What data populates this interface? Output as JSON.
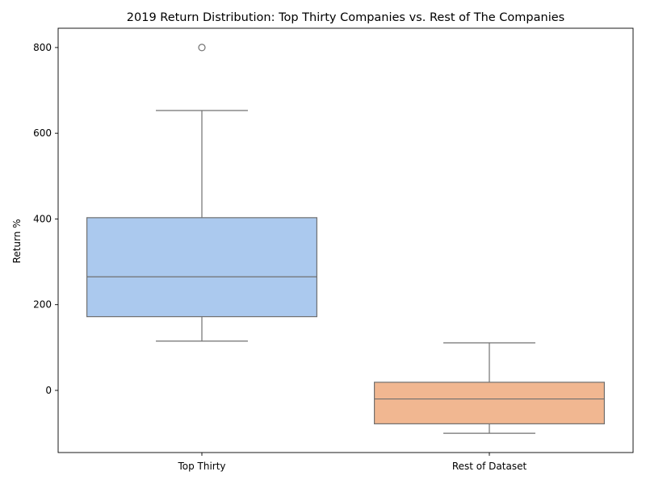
{
  "chart_data": {
    "type": "box",
    "title": "2019 Return Distribution: Top Thirty Companies vs. Rest of The Companies",
    "xlabel": "",
    "ylabel": "Return %",
    "ylim": [
      -145,
      845
    ],
    "yticks": [
      0,
      200,
      400,
      600,
      800
    ],
    "grid": false,
    "categories": [
      "Top Thirty",
      "Rest of Dataset"
    ],
    "boxes": [
      {
        "category": "Top Thirty",
        "whisker_low": 115,
        "q1": 172,
        "median": 265,
        "q3": 403,
        "whisker_high": 653,
        "outliers": [
          800
        ],
        "color": "#abc9ee"
      },
      {
        "category": "Rest of Dataset",
        "whisker_low": -100,
        "q1": -78,
        "median": -20,
        "q3": 19,
        "whisker_high": 111,
        "outliers": [],
        "color": "#f1b791"
      }
    ],
    "line_color": "#707070",
    "axis_color": "#000000"
  }
}
